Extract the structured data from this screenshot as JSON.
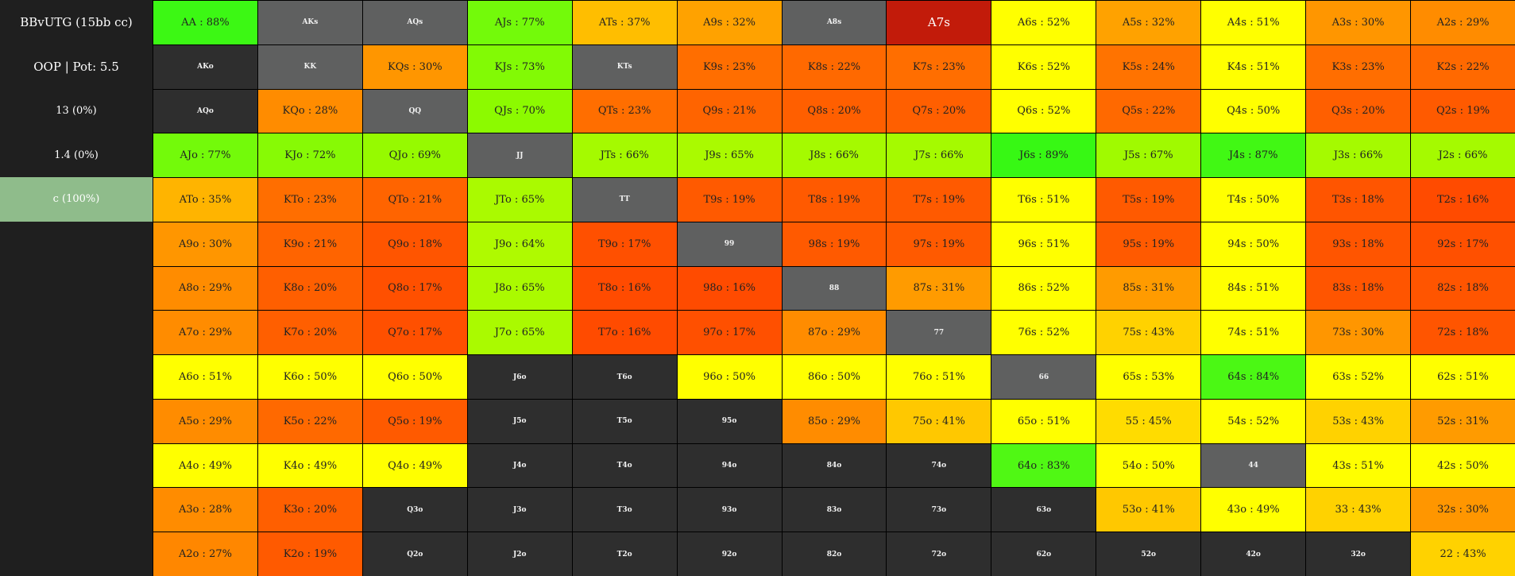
{
  "sidebar": {
    "items": [
      {
        "label": "BBvUTG (15bb cc)"
      },
      {
        "label": "OOP | Pot: 5.5"
      },
      {
        "label": "13 (0%)"
      },
      {
        "label": "1.4 (0%)"
      },
      {
        "label": "c (100%)",
        "active": true,
        "bg": "#8fbc8b"
      }
    ]
  },
  "grid": {
    "rows": [
      [
        {
          "label": "AA : 88%",
          "bg": "#3cf814"
        },
        {
          "label": "AKs",
          "state": "pair"
        },
        {
          "label": "AQs",
          "state": "pair"
        },
        {
          "label": "AJs : 77%",
          "bg": "#73fa0a"
        },
        {
          "label": "ATs : 37%",
          "bg": "#ffbe00"
        },
        {
          "label": "A9s : 32%",
          "bg": "#ffa200"
        },
        {
          "label": "A8s",
          "state": "pair"
        },
        {
          "label": "A7s",
          "state": "hl"
        },
        {
          "label": "A6s : 52%",
          "bg": "#ffff00"
        },
        {
          "label": "A5s : 32%",
          "bg": "#ffa200"
        },
        {
          "label": "A4s : 51%",
          "bg": "#ffff00"
        },
        {
          "label": "A3s : 30%",
          "bg": "#ff9600"
        },
        {
          "label": "A2s : 29%",
          "bg": "#ff8c00"
        }
      ],
      [
        {
          "label": "AKo",
          "state": "blank"
        },
        {
          "label": "KK",
          "state": "pair"
        },
        {
          "label": "KQs : 30%",
          "bg": "#ff9600"
        },
        {
          "label": "KJs : 73%",
          "bg": "#82fa05"
        },
        {
          "label": "KTs",
          "state": "pair"
        },
        {
          "label": "K9s : 23%",
          "bg": "#ff6e00"
        },
        {
          "label": "K8s : 22%",
          "bg": "#ff6900"
        },
        {
          "label": "K7s : 23%",
          "bg": "#ff6e00"
        },
        {
          "label": "K6s : 52%",
          "bg": "#ffff00"
        },
        {
          "label": "K5s : 24%",
          "bg": "#ff7300"
        },
        {
          "label": "K4s : 51%",
          "bg": "#ffff00"
        },
        {
          "label": "K3s : 23%",
          "bg": "#ff6e00"
        },
        {
          "label": "K2s : 22%",
          "bg": "#ff6900"
        }
      ],
      [
        {
          "label": "AQo",
          "state": "blank"
        },
        {
          "label": "KQo : 28%",
          "bg": "#ff8c00"
        },
        {
          "label": "QQ",
          "state": "pair"
        },
        {
          "label": "QJs : 70%",
          "bg": "#8cfa00"
        },
        {
          "label": "QTs : 23%",
          "bg": "#ff6e00"
        },
        {
          "label": "Q9s : 21%",
          "bg": "#ff6400"
        },
        {
          "label": "Q8s : 20%",
          "bg": "#ff5f00"
        },
        {
          "label": "Q7s : 20%",
          "bg": "#ff5f00"
        },
        {
          "label": "Q6s : 52%",
          "bg": "#ffff00"
        },
        {
          "label": "Q5s : 22%",
          "bg": "#ff6900"
        },
        {
          "label": "Q4s : 50%",
          "bg": "#ffff00"
        },
        {
          "label": "Q3s : 20%",
          "bg": "#ff5f00"
        },
        {
          "label": "Q2s : 19%",
          "bg": "#ff5a00"
        }
      ],
      [
        {
          "label": "AJo : 77%",
          "bg": "#73fa0a"
        },
        {
          "label": "KJo : 72%",
          "bg": "#87fa05"
        },
        {
          "label": "QJo : 69%",
          "bg": "#96fa00"
        },
        {
          "label": "JJ",
          "state": "pair"
        },
        {
          "label": "JTs : 66%",
          "bg": "#a5fa00"
        },
        {
          "label": "J9s : 65%",
          "bg": "#aafa00"
        },
        {
          "label": "J8s : 66%",
          "bg": "#a5fa00"
        },
        {
          "label": "J7s : 66%",
          "bg": "#a5fa00"
        },
        {
          "label": "J6s : 89%",
          "bg": "#37f814"
        },
        {
          "label": "J5s : 67%",
          "bg": "#a0fa00"
        },
        {
          "label": "J4s : 87%",
          "bg": "#41f814"
        },
        {
          "label": "J3s : 66%",
          "bg": "#a5fa00"
        },
        {
          "label": "J2s : 66%",
          "bg": "#a5fa00"
        }
      ],
      [
        {
          "label": "ATo : 35%",
          "bg": "#ffb400"
        },
        {
          "label": "KTo : 23%",
          "bg": "#ff6e00"
        },
        {
          "label": "QTo : 21%",
          "bg": "#ff6400"
        },
        {
          "label": "JTo : 65%",
          "bg": "#aafa00"
        },
        {
          "label": "TT",
          "state": "pair"
        },
        {
          "label": "T9s : 19%",
          "bg": "#ff5a00"
        },
        {
          "label": "T8s : 19%",
          "bg": "#ff5a00"
        },
        {
          "label": "T7s : 19%",
          "bg": "#ff5a00"
        },
        {
          "label": "T6s : 51%",
          "bg": "#ffff00"
        },
        {
          "label": "T5s : 19%",
          "bg": "#ff5a00"
        },
        {
          "label": "T4s : 50%",
          "bg": "#ffff00"
        },
        {
          "label": "T3s : 18%",
          "bg": "#ff5500"
        },
        {
          "label": "T2s : 16%",
          "bg": "#ff4b00"
        }
      ],
      [
        {
          "label": "A9o : 30%",
          "bg": "#ff9600"
        },
        {
          "label": "K9o : 21%",
          "bg": "#ff6400"
        },
        {
          "label": "Q9o : 18%",
          "bg": "#ff5500"
        },
        {
          "label": "J9o : 64%",
          "bg": "#affa00"
        },
        {
          "label": "T9o : 17%",
          "bg": "#ff5000"
        },
        {
          "label": "99",
          "state": "pair"
        },
        {
          "label": "98s : 19%",
          "bg": "#ff5a00"
        },
        {
          "label": "97s : 19%",
          "bg": "#ff5a00"
        },
        {
          "label": "96s : 51%",
          "bg": "#ffff00"
        },
        {
          "label": "95s : 19%",
          "bg": "#ff5a00"
        },
        {
          "label": "94s : 50%",
          "bg": "#ffff00"
        },
        {
          "label": "93s : 18%",
          "bg": "#ff5500"
        },
        {
          "label": "92s : 17%",
          "bg": "#ff5000"
        }
      ],
      [
        {
          "label": "A8o : 29%",
          "bg": "#ff8c00"
        },
        {
          "label": "K8o : 20%",
          "bg": "#ff5f00"
        },
        {
          "label": "Q8o : 17%",
          "bg": "#ff5000"
        },
        {
          "label": "J8o : 65%",
          "bg": "#aafa00"
        },
        {
          "label": "T8o : 16%",
          "bg": "#ff4b00"
        },
        {
          "label": "98o : 16%",
          "bg": "#ff4b00"
        },
        {
          "label": "88",
          "state": "pair"
        },
        {
          "label": "87s : 31%",
          "bg": "#ff9b00"
        },
        {
          "label": "86s : 52%",
          "bg": "#ffff00"
        },
        {
          "label": "85s : 31%",
          "bg": "#ff9b00"
        },
        {
          "label": "84s : 51%",
          "bg": "#ffff00"
        },
        {
          "label": "83s : 18%",
          "bg": "#ff5500"
        },
        {
          "label": "82s : 18%",
          "bg": "#ff5500"
        }
      ],
      [
        {
          "label": "A7o : 29%",
          "bg": "#ff8c00"
        },
        {
          "label": "K7o : 20%",
          "bg": "#ff5f00"
        },
        {
          "label": "Q7o : 17%",
          "bg": "#ff5000"
        },
        {
          "label": "J7o : 65%",
          "bg": "#aafa00"
        },
        {
          "label": "T7o : 16%",
          "bg": "#ff4b00"
        },
        {
          "label": "97o : 17%",
          "bg": "#ff5000"
        },
        {
          "label": "87o : 29%",
          "bg": "#ff8c00"
        },
        {
          "label": "77",
          "state": "pair"
        },
        {
          "label": "76s : 52%",
          "bg": "#ffff00"
        },
        {
          "label": "75s : 43%",
          "bg": "#ffd200"
        },
        {
          "label": "74s : 51%",
          "bg": "#ffff00"
        },
        {
          "label": "73s : 30%",
          "bg": "#ff9600"
        },
        {
          "label": "72s : 18%",
          "bg": "#ff5500"
        }
      ],
      [
        {
          "label": "A6o : 51%",
          "bg": "#ffff00"
        },
        {
          "label": "K6o : 50%",
          "bg": "#ffff00"
        },
        {
          "label": "Q6o : 50%",
          "bg": "#ffff00"
        },
        {
          "label": "J6o",
          "state": "blank"
        },
        {
          "label": "T6o",
          "state": "blank"
        },
        {
          "label": "96o : 50%",
          "bg": "#ffff00"
        },
        {
          "label": "86o : 50%",
          "bg": "#ffff00"
        },
        {
          "label": "76o : 51%",
          "bg": "#ffff00"
        },
        {
          "label": "66",
          "state": "pair"
        },
        {
          "label": "65s : 53%",
          "bg": "#ffff00"
        },
        {
          "label": "64s : 84%",
          "bg": "#4bf814"
        },
        {
          "label": "63s : 52%",
          "bg": "#ffff00"
        },
        {
          "label": "62s : 51%",
          "bg": "#ffff00"
        }
      ],
      [
        {
          "label": "A5o : 29%",
          "bg": "#ff8c00"
        },
        {
          "label": "K5o : 22%",
          "bg": "#ff6900"
        },
        {
          "label": "Q5o : 19%",
          "bg": "#ff5a00"
        },
        {
          "label": "J5o",
          "state": "blank"
        },
        {
          "label": "T5o",
          "state": "blank"
        },
        {
          "label": "95o",
          "state": "blank"
        },
        {
          "label": "85o : 29%",
          "bg": "#ff8c00"
        },
        {
          "label": "75o : 41%",
          "bg": "#ffc800"
        },
        {
          "label": "65o : 51%",
          "bg": "#ffff00"
        },
        {
          "label": "55 : 45%",
          "bg": "#ffdc00"
        },
        {
          "label": "54s : 52%",
          "bg": "#ffff00"
        },
        {
          "label": "53s : 43%",
          "bg": "#ffd200"
        },
        {
          "label": "52s : 31%",
          "bg": "#ff9b00"
        }
      ],
      [
        {
          "label": "A4o : 49%",
          "bg": "#ffff00"
        },
        {
          "label": "K4o : 49%",
          "bg": "#ffff00"
        },
        {
          "label": "Q4o : 49%",
          "bg": "#ffff00"
        },
        {
          "label": "J4o",
          "state": "blank"
        },
        {
          "label": "T4o",
          "state": "blank"
        },
        {
          "label": "94o",
          "state": "blank"
        },
        {
          "label": "84o",
          "state": "blank"
        },
        {
          "label": "74o",
          "state": "blank"
        },
        {
          "label": "64o : 83%",
          "bg": "#50f814"
        },
        {
          "label": "54o : 50%",
          "bg": "#ffff00"
        },
        {
          "label": "44",
          "state": "pair"
        },
        {
          "label": "43s : 51%",
          "bg": "#ffff00"
        },
        {
          "label": "42s : 50%",
          "bg": "#ffff00"
        }
      ],
      [
        {
          "label": "A3o : 28%",
          "bg": "#ff8c00"
        },
        {
          "label": "K3o : 20%",
          "bg": "#ff5f00"
        },
        {
          "label": "Q3o",
          "state": "blank"
        },
        {
          "label": "J3o",
          "state": "blank"
        },
        {
          "label": "T3o",
          "state": "blank"
        },
        {
          "label": "93o",
          "state": "blank"
        },
        {
          "label": "83o",
          "state": "blank"
        },
        {
          "label": "73o",
          "state": "blank"
        },
        {
          "label": "63o",
          "state": "blank"
        },
        {
          "label": "53o : 41%",
          "bg": "#ffc800"
        },
        {
          "label": "43o : 49%",
          "bg": "#ffff00"
        },
        {
          "label": "33 : 43%",
          "bg": "#ffd200"
        },
        {
          "label": "32s : 30%",
          "bg": "#ff9600"
        }
      ],
      [
        {
          "label": "A2o : 27%",
          "bg": "#ff8700"
        },
        {
          "label": "K2o : 19%",
          "bg": "#ff5a00"
        },
        {
          "label": "Q2o",
          "state": "blank"
        },
        {
          "label": "J2o",
          "state": "blank"
        },
        {
          "label": "T2o",
          "state": "blank"
        },
        {
          "label": "92o",
          "state": "blank"
        },
        {
          "label": "82o",
          "state": "blank"
        },
        {
          "label": "72o",
          "state": "blank"
        },
        {
          "label": "62o",
          "state": "blank"
        },
        {
          "label": "52o",
          "state": "blank"
        },
        {
          "label": "42o",
          "state": "blank"
        },
        {
          "label": "32o",
          "state": "blank"
        },
        {
          "label": "22 : 43%",
          "bg": "#ffd200"
        }
      ]
    ]
  }
}
